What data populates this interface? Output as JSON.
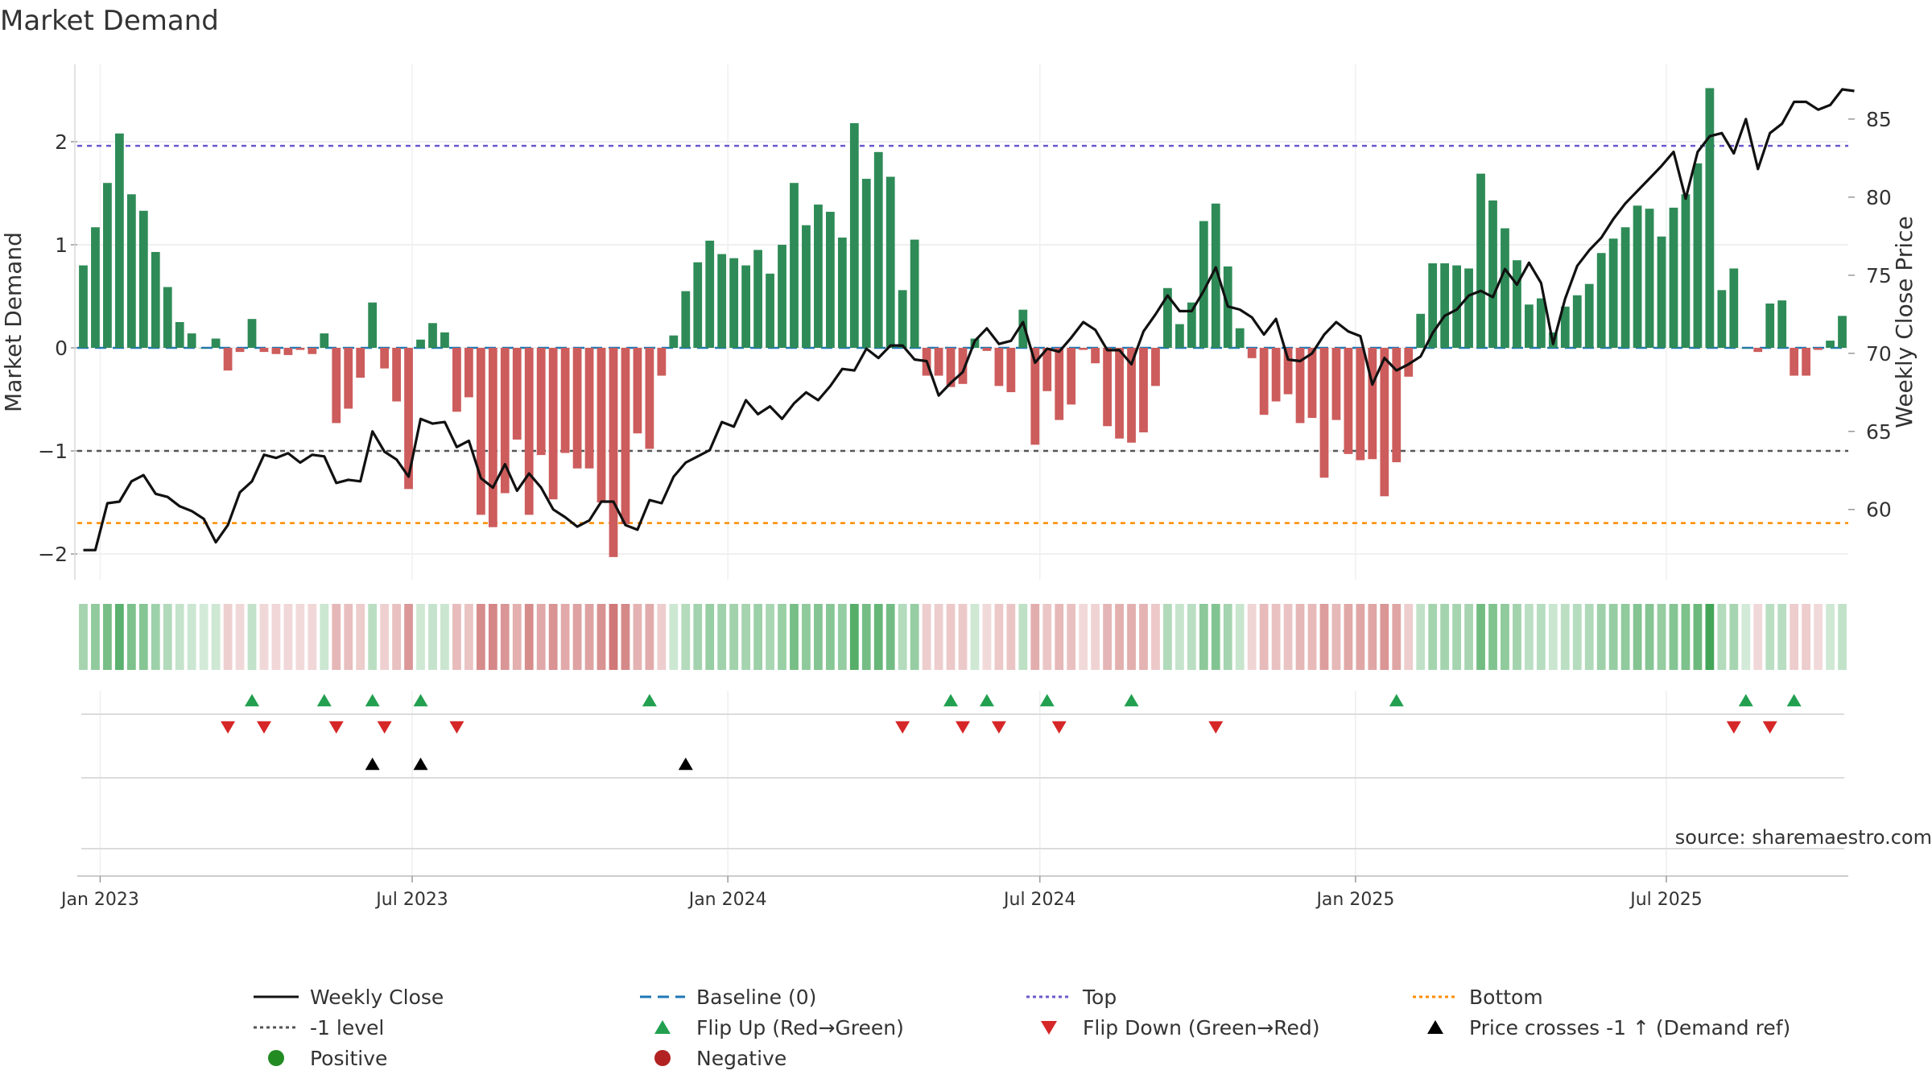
{
  "title": "Market Demand",
  "source": "source: sharemaestro.com",
  "colors": {
    "pos": "#2e8b57",
    "neg": "#cd5c5c",
    "close": "#111111",
    "baseline": "#1f77b4",
    "top": "#6a5acd",
    "minus1": "#555555",
    "bottom": "#ff8c00",
    "flipUp": "#22a050",
    "flipDown": "#d62728",
    "cross": "#000000",
    "positive_dot": "#228b22",
    "negative_dot": "#b22222"
  },
  "legend": [
    {
      "label": "Weekly Close",
      "kind": "line",
      "color": "#111111",
      "dash": ""
    },
    {
      "label": "Baseline (0)",
      "kind": "line",
      "color": "#1f77b4",
      "dash": "14,8"
    },
    {
      "label": "Top",
      "kind": "line",
      "color": "#6a5acd",
      "dash": "4,4"
    },
    {
      "label": "Bottom",
      "kind": "line",
      "color": "#ff8c00",
      "dash": "4,4"
    },
    {
      "label": "-1 level",
      "kind": "line",
      "color": "#555555",
      "dash": "4,4"
    },
    {
      "label": "Flip Up (Red→Green)",
      "kind": "tri-up",
      "color": "#22a050"
    },
    {
      "label": "Flip Down (Green→Red)",
      "kind": "tri-down",
      "color": "#d62728"
    },
    {
      "label": "Price crosses -1 ↑ (Demand ref)",
      "kind": "tri-up",
      "color": "#000000"
    },
    {
      "label": "Positive",
      "kind": "dot",
      "color": "#228b22"
    },
    {
      "label": "Negative",
      "kind": "dot",
      "color": "#b22222"
    }
  ],
  "chart_data": {
    "type": "bar",
    "title": "Market Demand",
    "ylabel": "Market Demand",
    "y2label": "Weekly Close Price",
    "ylim": [
      -2.25,
      2.75
    ],
    "y2lim": [
      55.5,
      88.5
    ],
    "yticks": [
      -2,
      -1,
      0,
      1,
      2
    ],
    "y2ticks": [
      60,
      65,
      70,
      75,
      80,
      85
    ],
    "xticks": [
      {
        "label": "Jan 2023",
        "i": 1.4
      },
      {
        "label": "Jul 2023",
        "i": 27.3
      },
      {
        "label": "Jan 2024",
        "i": 53.5
      },
      {
        "label": "Jul 2024",
        "i": 79.4
      },
      {
        "label": "Jan 2025",
        "i": 105.6
      },
      {
        "label": "Jul 2025",
        "i": 131.4
      }
    ],
    "ref_lines": {
      "top": 1.96,
      "minus1": -1.0,
      "bottom": -1.7,
      "baseline": 0
    },
    "demand": [
      0.8,
      1.17,
      1.6,
      2.08,
      1.49,
      1.33,
      0.93,
      0.59,
      0.25,
      0.14,
      0.0,
      0.09,
      -0.22,
      -0.04,
      0.28,
      -0.04,
      -0.06,
      -0.07,
      -0.02,
      -0.06,
      0.14,
      -0.73,
      -0.59,
      -0.29,
      0.44,
      -0.2,
      -0.52,
      -1.37,
      0.08,
      0.24,
      0.15,
      -0.62,
      -0.48,
      -1.62,
      -1.74,
      -1.41,
      -0.89,
      -1.62,
      -1.04,
      -1.47,
      -1.02,
      -1.17,
      -1.17,
      -1.5,
      -2.03,
      -1.71,
      -0.83,
      -0.98,
      -0.27,
      0.12,
      0.55,
      0.83,
      1.04,
      0.91,
      0.87,
      0.8,
      0.95,
      0.72,
      1.0,
      1.6,
      1.19,
      1.39,
      1.32,
      1.07,
      2.18,
      1.64,
      1.9,
      1.66,
      0.56,
      1.05,
      -0.27,
      -0.27,
      -0.38,
      -0.35,
      0.09,
      -0.03,
      -0.37,
      -0.43,
      0.37,
      -0.94,
      -0.42,
      -0.7,
      -0.55,
      -0.02,
      -0.15,
      -0.76,
      -0.88,
      -0.92,
      -0.82,
      -0.37,
      0.58,
      0.23,
      0.44,
      1.23,
      1.4,
      0.79,
      0.19,
      -0.1,
      -0.65,
      -0.52,
      -0.45,
      -0.73,
      -0.68,
      -1.26,
      -0.7,
      -1.03,
      -1.09,
      -1.08,
      -1.44,
      -1.11,
      -0.28,
      0.33,
      0.82,
      0.82,
      0.8,
      0.77,
      1.69,
      1.43,
      1.16,
      0.85,
      0.42,
      0.48,
      0.15,
      0.4,
      0.51,
      0.62,
      0.92,
      1.06,
      1.17,
      1.38,
      1.35,
      1.08,
      1.36,
      1.49,
      1.79,
      2.52,
      0.56,
      0.77,
      0.0,
      -0.04,
      0.43,
      0.46,
      -0.27,
      -0.27,
      -0.02,
      0.07,
      0.31
    ],
    "close": [
      57.4,
      57.4,
      60.4,
      60.5,
      61.8,
      62.2,
      61.0,
      60.8,
      60.2,
      59.9,
      59.4,
      57.9,
      59.0,
      61.1,
      61.8,
      63.5,
      63.3,
      63.6,
      63.0,
      63.5,
      63.4,
      61.7,
      61.9,
      61.8,
      65.0,
      63.7,
      63.2,
      62.1,
      65.8,
      65.5,
      65.6,
      64.0,
      64.4,
      62.0,
      61.4,
      62.9,
      61.2,
      62.3,
      61.4,
      60.0,
      59.5,
      58.9,
      59.3,
      60.5,
      60.5,
      59.0,
      58.7,
      60.6,
      60.4,
      62.1,
      63.0,
      63.4,
      63.8,
      65.6,
      65.3,
      67.0,
      66.1,
      66.6,
      65.8,
      66.8,
      67.5,
      67.0,
      67.9,
      69.0,
      68.9,
      70.3,
      69.7,
      70.5,
      70.5,
      69.6,
      69.5,
      67.3,
      68.1,
      68.8,
      70.8,
      71.6,
      70.6,
      70.8,
      72.0,
      69.4,
      70.3,
      70.1,
      71.0,
      72.0,
      71.5,
      70.2,
      70.2,
      69.3,
      71.4,
      72.5,
      73.7,
      72.7,
      72.7,
      74.0,
      75.5,
      73.0,
      72.8,
      72.3,
      71.2,
      72.2,
      69.6,
      69.5,
      70.0,
      71.2,
      72.0,
      71.4,
      71.1,
      68.0,
      69.7,
      68.9,
      69.3,
      69.8,
      71.3,
      72.4,
      72.8,
      73.7,
      74.0,
      73.6,
      75.4,
      74.4,
      75.8,
      74.5,
      70.6,
      73.5,
      75.6,
      76.6,
      77.4,
      78.6,
      79.6,
      80.4,
      81.2,
      82.0,
      82.9,
      79.9,
      82.9,
      83.9,
      84.1,
      82.8,
      85.0,
      81.8,
      84.1,
      84.7,
      86.1,
      86.1,
      85.6,
      85.9,
      86.9,
      86.8
    ],
    "flip_up": [
      14,
      20,
      24,
      28,
      47,
      72,
      75,
      80,
      87,
      109,
      138,
      142
    ],
    "flip_down": [
      12,
      15,
      21,
      25,
      31,
      68,
      73,
      76,
      81,
      94,
      137,
      140
    ],
    "cross_up": [
      24,
      28,
      50
    ]
  }
}
